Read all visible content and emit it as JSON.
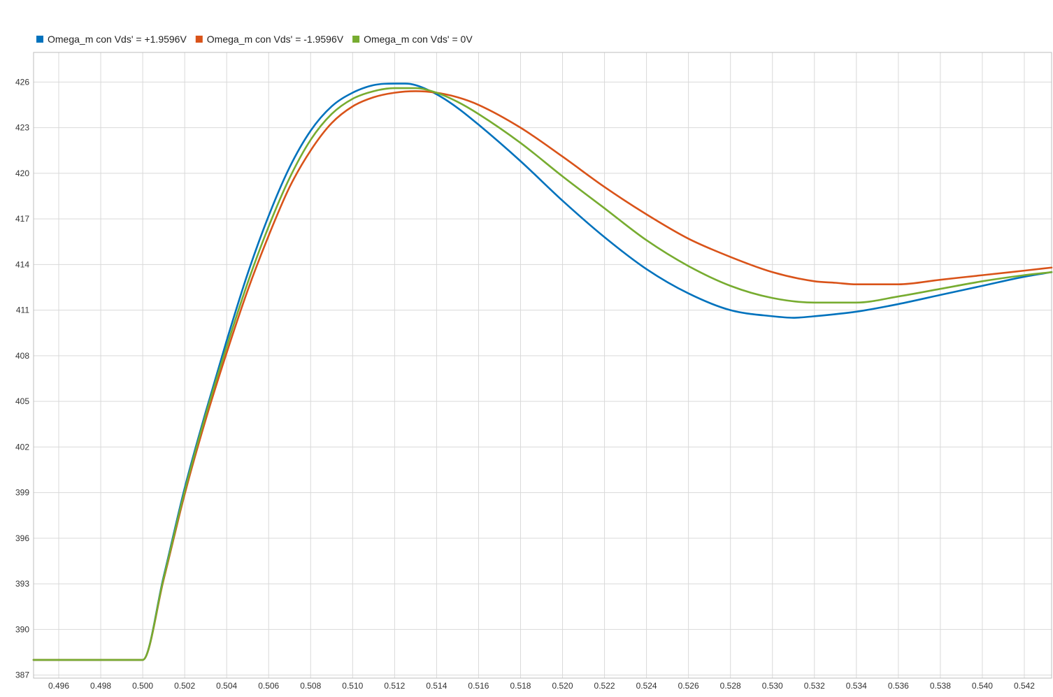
{
  "chart_data": {
    "type": "line",
    "title": "",
    "xlabel": "",
    "ylabel": "",
    "xlim": [
      0.4948,
      0.5433
    ],
    "ylim": [
      386.8,
      427.95
    ],
    "grid": true,
    "legend_position": "top-left",
    "x_ticks": [
      0.496,
      0.498,
      0.5,
      0.502,
      0.504,
      0.506,
      0.508,
      0.51,
      0.512,
      0.514,
      0.516,
      0.518,
      0.52,
      0.522,
      0.524,
      0.526,
      0.528,
      0.53,
      0.532,
      0.534,
      0.536,
      0.538,
      0.54,
      0.542
    ],
    "x_tick_labels": [
      "0.496",
      "0.498",
      "0.500",
      "0.502",
      "0.504",
      "0.506",
      "0.508",
      "0.510",
      "0.512",
      "0.514",
      "0.516",
      "0.518",
      "0.520",
      "0.522",
      "0.524",
      "0.526",
      "0.528",
      "0.530",
      "0.532",
      "0.534",
      "0.536",
      "0.538",
      "0.540",
      "0.542"
    ],
    "y_ticks": [
      387,
      390,
      393,
      396,
      399,
      402,
      405,
      408,
      411,
      414,
      417,
      420,
      423,
      426
    ],
    "y_tick_labels": [
      "387",
      "390",
      "393",
      "396",
      "399",
      "402",
      "405",
      "408",
      "411",
      "414",
      "417",
      "420",
      "423",
      "426"
    ],
    "series": [
      {
        "name": "Omega_m con Vds' = +1.9596V",
        "color": "#0072BD",
        "x": [
          0.4948,
          0.5,
          0.501,
          0.502,
          0.503,
          0.504,
          0.505,
          0.506,
          0.507,
          0.508,
          0.509,
          0.51,
          0.511,
          0.512,
          0.5125,
          0.513,
          0.514,
          0.515,
          0.516,
          0.518,
          0.52,
          0.522,
          0.524,
          0.526,
          0.528,
          0.53,
          0.531,
          0.532,
          0.534,
          0.536,
          0.538,
          0.54,
          0.542,
          0.5433
        ],
        "y": [
          388.0,
          388.0,
          393.5,
          399.3,
          404.3,
          409.0,
          413.4,
          417.2,
          420.4,
          422.8,
          424.4,
          425.3,
          425.8,
          425.9,
          425.9,
          425.8,
          425.2,
          424.3,
          423.2,
          420.8,
          418.2,
          415.8,
          413.7,
          412.1,
          411.0,
          410.6,
          410.5,
          410.6,
          410.9,
          411.4,
          412.0,
          412.6,
          413.2,
          413.5
        ]
      },
      {
        "name": "Omega_m con Vds' = -1.9596V",
        "color": "#D95319",
        "x": [
          0.4948,
          0.5,
          0.501,
          0.502,
          0.503,
          0.504,
          0.505,
          0.506,
          0.507,
          0.508,
          0.509,
          0.51,
          0.511,
          0.512,
          0.513,
          0.514,
          0.515,
          0.516,
          0.518,
          0.52,
          0.522,
          0.524,
          0.526,
          0.528,
          0.53,
          0.532,
          0.533,
          0.534,
          0.536,
          0.538,
          0.54,
          0.542,
          0.5433
        ],
        "y": [
          388.0,
          388.0,
          393.3,
          398.9,
          403.8,
          408.2,
          412.3,
          415.9,
          419.1,
          421.5,
          423.3,
          424.4,
          425.0,
          425.3,
          425.4,
          425.3,
          425.0,
          424.5,
          423.0,
          421.1,
          419.1,
          417.3,
          415.7,
          414.5,
          413.5,
          412.9,
          412.8,
          412.7,
          412.7,
          413.0,
          413.3,
          413.6,
          413.8
        ]
      },
      {
        "name": "Omega_m con Vds' = 0V",
        "color": "#77AC30",
        "x": [
          0.4948,
          0.5,
          0.501,
          0.502,
          0.503,
          0.504,
          0.505,
          0.506,
          0.507,
          0.508,
          0.509,
          0.51,
          0.511,
          0.512,
          0.513,
          0.514,
          0.515,
          0.516,
          0.518,
          0.52,
          0.522,
          0.524,
          0.526,
          0.528,
          0.53,
          0.532,
          0.533,
          0.534,
          0.536,
          0.538,
          0.54,
          0.542,
          0.5433
        ],
        "y": [
          388.0,
          388.0,
          393.4,
          399.1,
          404.1,
          408.6,
          412.8,
          416.5,
          419.7,
          422.2,
          423.9,
          424.9,
          425.4,
          425.6,
          425.6,
          425.3,
          424.7,
          423.9,
          422.0,
          419.8,
          417.7,
          415.6,
          413.9,
          412.6,
          411.8,
          411.5,
          411.5,
          411.5,
          411.9,
          412.4,
          412.9,
          413.3,
          413.5
        ]
      }
    ]
  }
}
